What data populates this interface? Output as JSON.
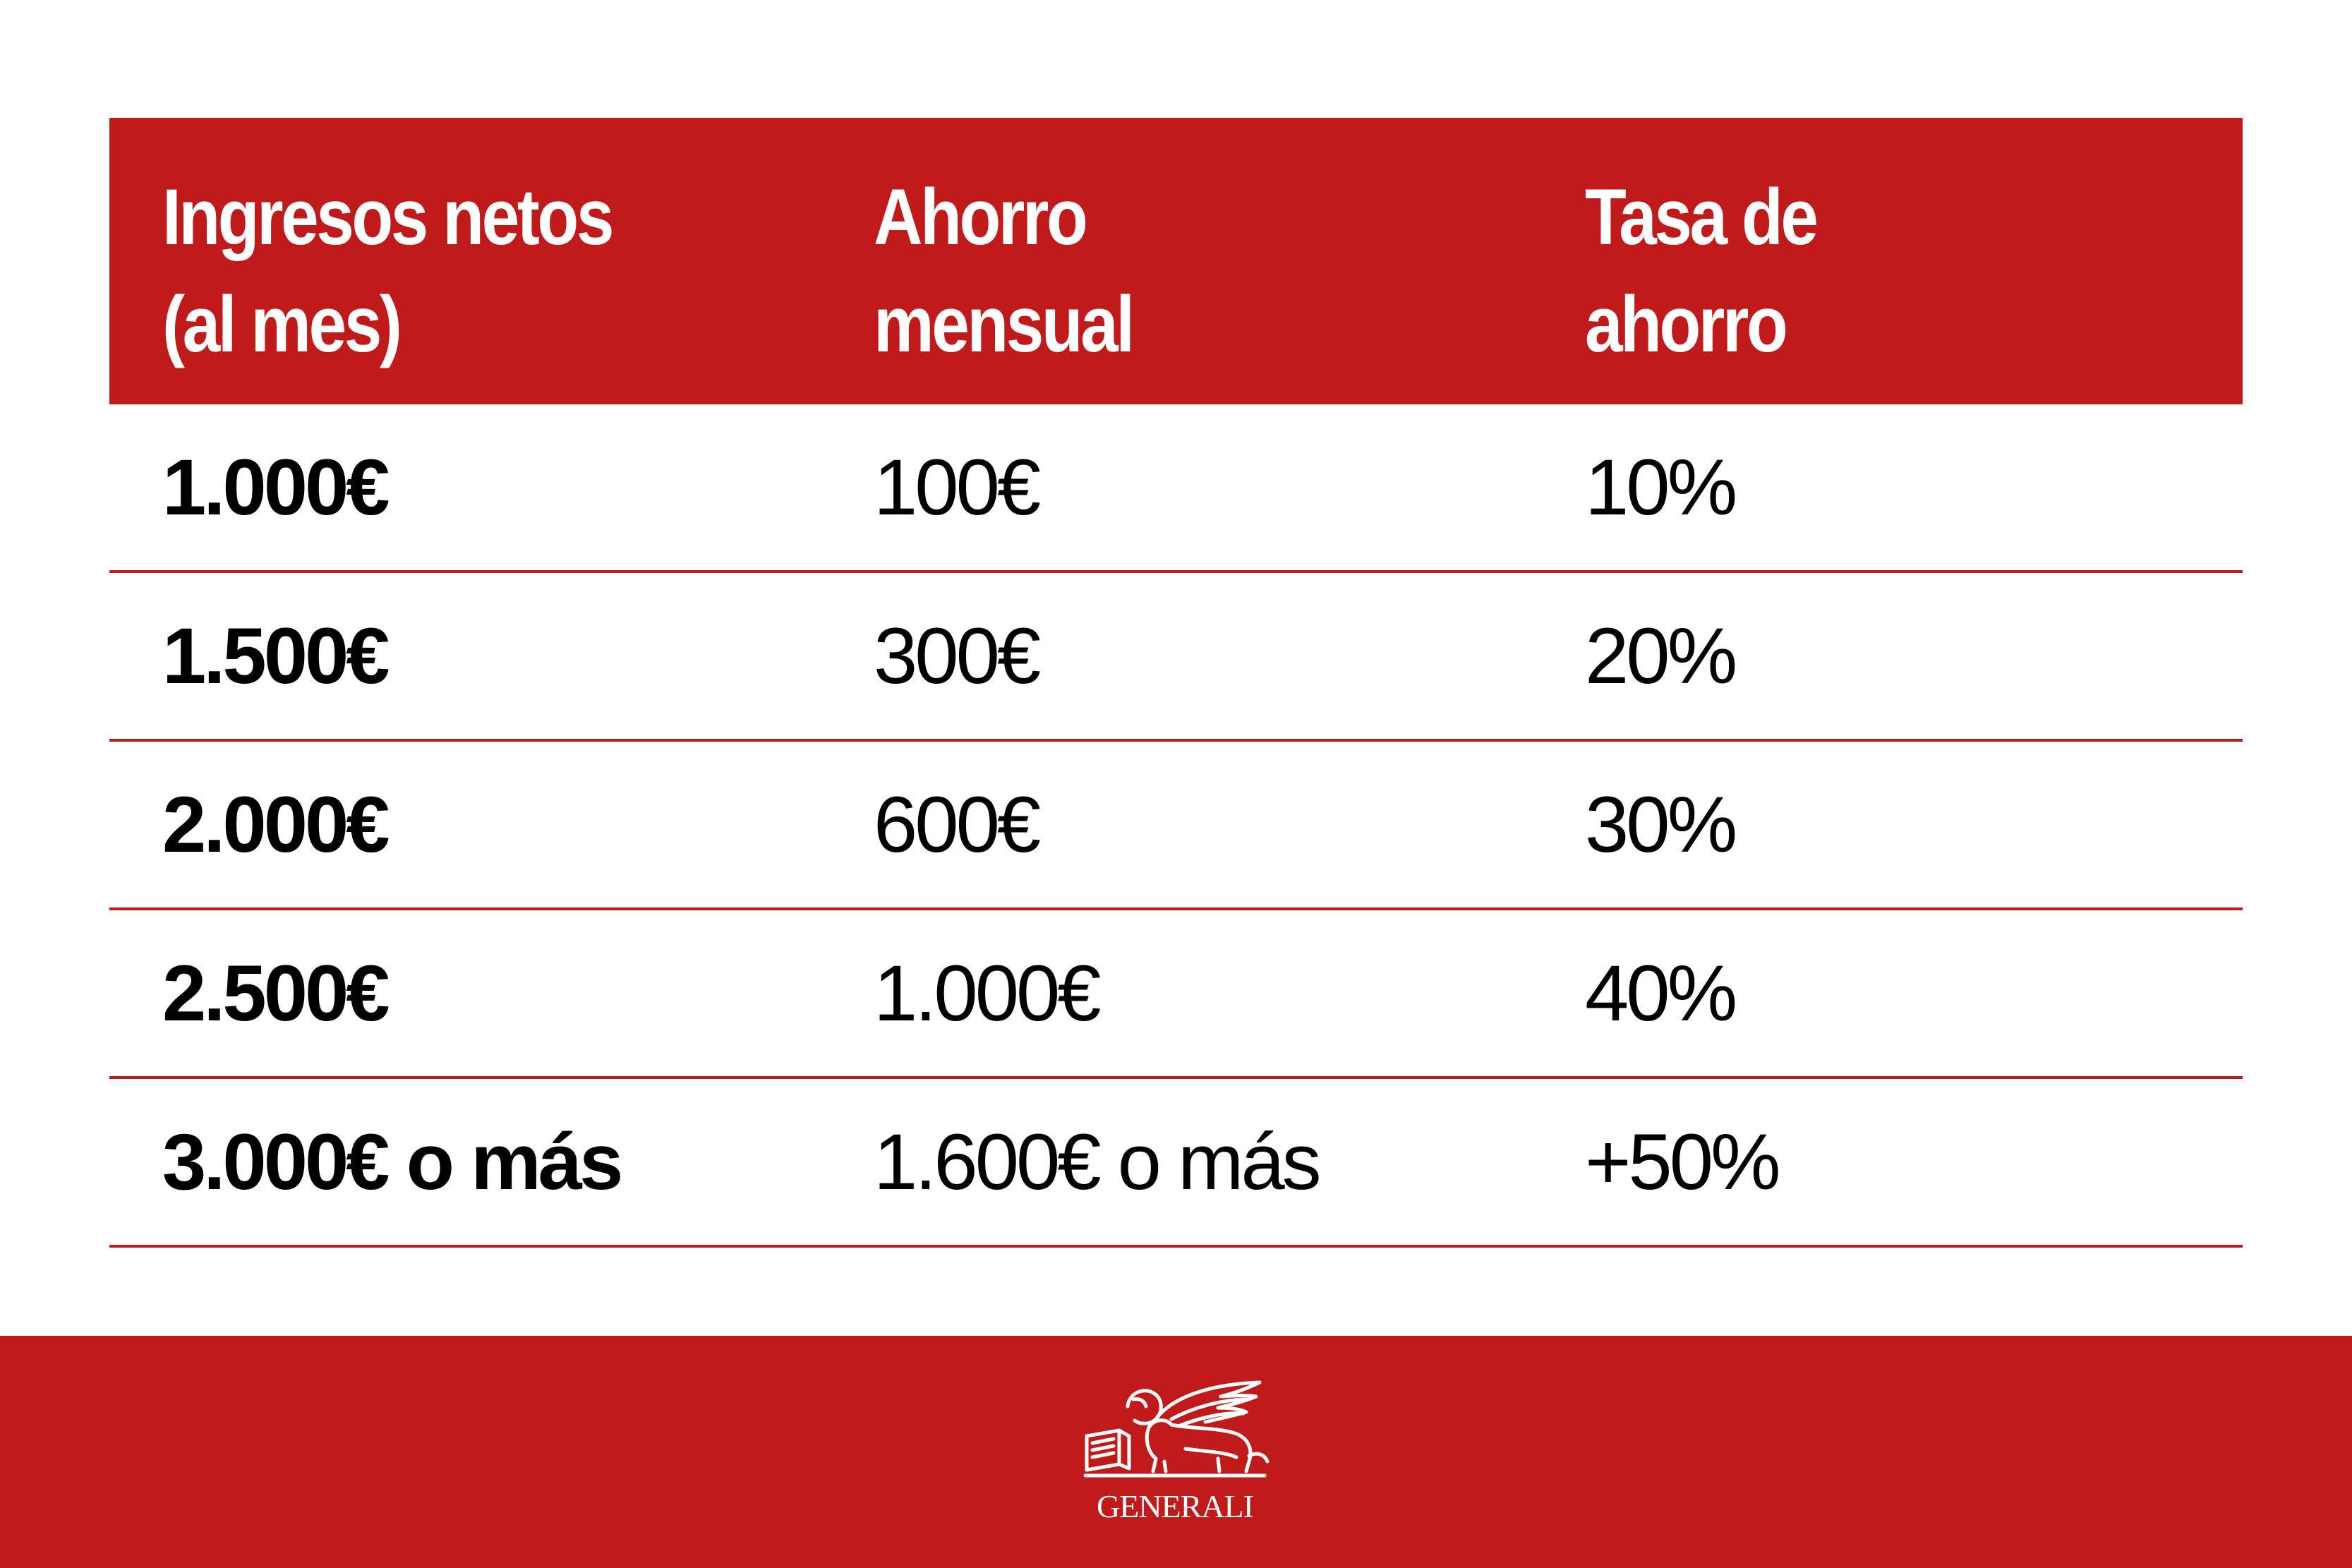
{
  "table": {
    "headers": [
      {
        "line1": "Ingresos netos",
        "line2": "(al mes)"
      },
      {
        "line1": "Ahorro",
        "line2": "mensual"
      },
      {
        "line1": "Tasa de",
        "line2": "ahorro"
      }
    ],
    "rows": [
      {
        "income": "1.000€",
        "savings": "100€",
        "rate": "10%"
      },
      {
        "income": "1.500€",
        "savings": "300€",
        "rate": "20%"
      },
      {
        "income": "2.000€",
        "savings": "600€",
        "rate": "30%"
      },
      {
        "income": "2.500€",
        "savings": "1.000€",
        "rate": "40%"
      },
      {
        "income": "3.000€ o más",
        "savings": "1.600€ o más",
        "rate": "+50%"
      }
    ]
  },
  "footer": {
    "brand": "GENERALI",
    "logo_icon": "winged-lion-icon"
  },
  "colors": {
    "accent": "#c01a1a",
    "text": "#000000",
    "background": "#ffffff"
  }
}
